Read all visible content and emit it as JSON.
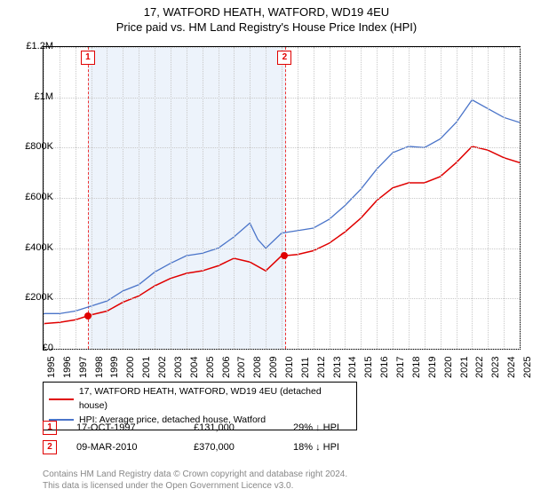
{
  "title": {
    "line1": "17, WATFORD HEATH, WATFORD, WD19 4EU",
    "line2": "Price paid vs. HM Land Registry's House Price Index (HPI)"
  },
  "chart": {
    "type": "line",
    "x_min": 1995,
    "x_max": 2025,
    "y_min": 0,
    "y_max": 1200000,
    "y_ticks": [
      0,
      200000,
      400000,
      600000,
      800000,
      1000000,
      1200000
    ],
    "y_tick_labels": [
      "£0",
      "£200K",
      "£400K",
      "£600K",
      "£800K",
      "£1M",
      "£1.2M"
    ],
    "x_ticks": [
      1995,
      1996,
      1997,
      1998,
      1999,
      2000,
      2001,
      2002,
      2003,
      2004,
      2005,
      2006,
      2007,
      2008,
      2009,
      2010,
      2011,
      2012,
      2013,
      2014,
      2015,
      2016,
      2017,
      2018,
      2019,
      2020,
      2021,
      2022,
      2023,
      2024,
      2025
    ],
    "background_color": "#ffffff",
    "grid_color": "#c9c9c9",
    "border_color": "#000000",
    "title_fontsize": 13,
    "axis_fontsize": 11,
    "shade_band": {
      "x_start": 1997.79,
      "x_end": 2010.19,
      "fill": "rgba(110,160,220,0.12)",
      "border": "#e33333"
    },
    "series": [
      {
        "name": "17, WATFORD HEATH, WATFORD, WD19 4EU (detached house)",
        "color": "#e00000",
        "line_width": 1.5,
        "points": [
          [
            1995,
            100000
          ],
          [
            1996,
            105000
          ],
          [
            1997,
            115000
          ],
          [
            1997.79,
            131000
          ],
          [
            1998,
            135000
          ],
          [
            1999,
            150000
          ],
          [
            2000,
            185000
          ],
          [
            2001,
            210000
          ],
          [
            2002,
            250000
          ],
          [
            2003,
            280000
          ],
          [
            2004,
            300000
          ],
          [
            2005,
            310000
          ],
          [
            2006,
            330000
          ],
          [
            2007,
            360000
          ],
          [
            2008,
            345000
          ],
          [
            2009,
            310000
          ],
          [
            2010,
            370000
          ],
          [
            2010.19,
            370000
          ],
          [
            2011,
            375000
          ],
          [
            2012,
            390000
          ],
          [
            2013,
            420000
          ],
          [
            2014,
            465000
          ],
          [
            2015,
            520000
          ],
          [
            2016,
            590000
          ],
          [
            2017,
            640000
          ],
          [
            2018,
            660000
          ],
          [
            2019,
            660000
          ],
          [
            2020,
            685000
          ],
          [
            2021,
            740000
          ],
          [
            2022,
            805000
          ],
          [
            2023,
            790000
          ],
          [
            2024,
            760000
          ],
          [
            2025,
            740000
          ]
        ]
      },
      {
        "name": "HPI: Average price, detached house, Watford",
        "color": "#4a74c9",
        "line_width": 1.3,
        "points": [
          [
            1995,
            140000
          ],
          [
            1996,
            140000
          ],
          [
            1997,
            150000
          ],
          [
            1998,
            170000
          ],
          [
            1999,
            190000
          ],
          [
            2000,
            230000
          ],
          [
            2001,
            255000
          ],
          [
            2002,
            305000
          ],
          [
            2003,
            340000
          ],
          [
            2004,
            370000
          ],
          [
            2005,
            380000
          ],
          [
            2006,
            400000
          ],
          [
            2007,
            445000
          ],
          [
            2008,
            500000
          ],
          [
            2008.5,
            435000
          ],
          [
            2009,
            400000
          ],
          [
            2010,
            460000
          ],
          [
            2011,
            470000
          ],
          [
            2012,
            480000
          ],
          [
            2013,
            515000
          ],
          [
            2014,
            570000
          ],
          [
            2015,
            635000
          ],
          [
            2016,
            715000
          ],
          [
            2017,
            780000
          ],
          [
            2018,
            805000
          ],
          [
            2019,
            800000
          ],
          [
            2020,
            835000
          ],
          [
            2021,
            900000
          ],
          [
            2022,
            990000
          ],
          [
            2023,
            955000
          ],
          [
            2024,
            920000
          ],
          [
            2025,
            900000
          ]
        ]
      }
    ],
    "markers": [
      {
        "label": "1",
        "x": 1997.79,
        "y": 131000
      },
      {
        "label": "2",
        "x": 2010.19,
        "y": 370000
      }
    ]
  },
  "legend": {
    "items": [
      {
        "label": "17, WATFORD HEATH, WATFORD, WD19 4EU (detached house)",
        "color": "#e00000"
      },
      {
        "label": "HPI: Average price, detached house, Watford",
        "color": "#4a74c9"
      }
    ]
  },
  "sales": [
    {
      "badge": "1",
      "date": "17-OCT-1997",
      "price": "£131,000",
      "diff": "29% ↓ HPI"
    },
    {
      "badge": "2",
      "date": "09-MAR-2010",
      "price": "£370,000",
      "diff": "18% ↓ HPI"
    }
  ],
  "footnote": {
    "line1": "Contains HM Land Registry data © Crown copyright and database right 2024.",
    "line2": "This data is licensed under the Open Government Licence v3.0."
  }
}
